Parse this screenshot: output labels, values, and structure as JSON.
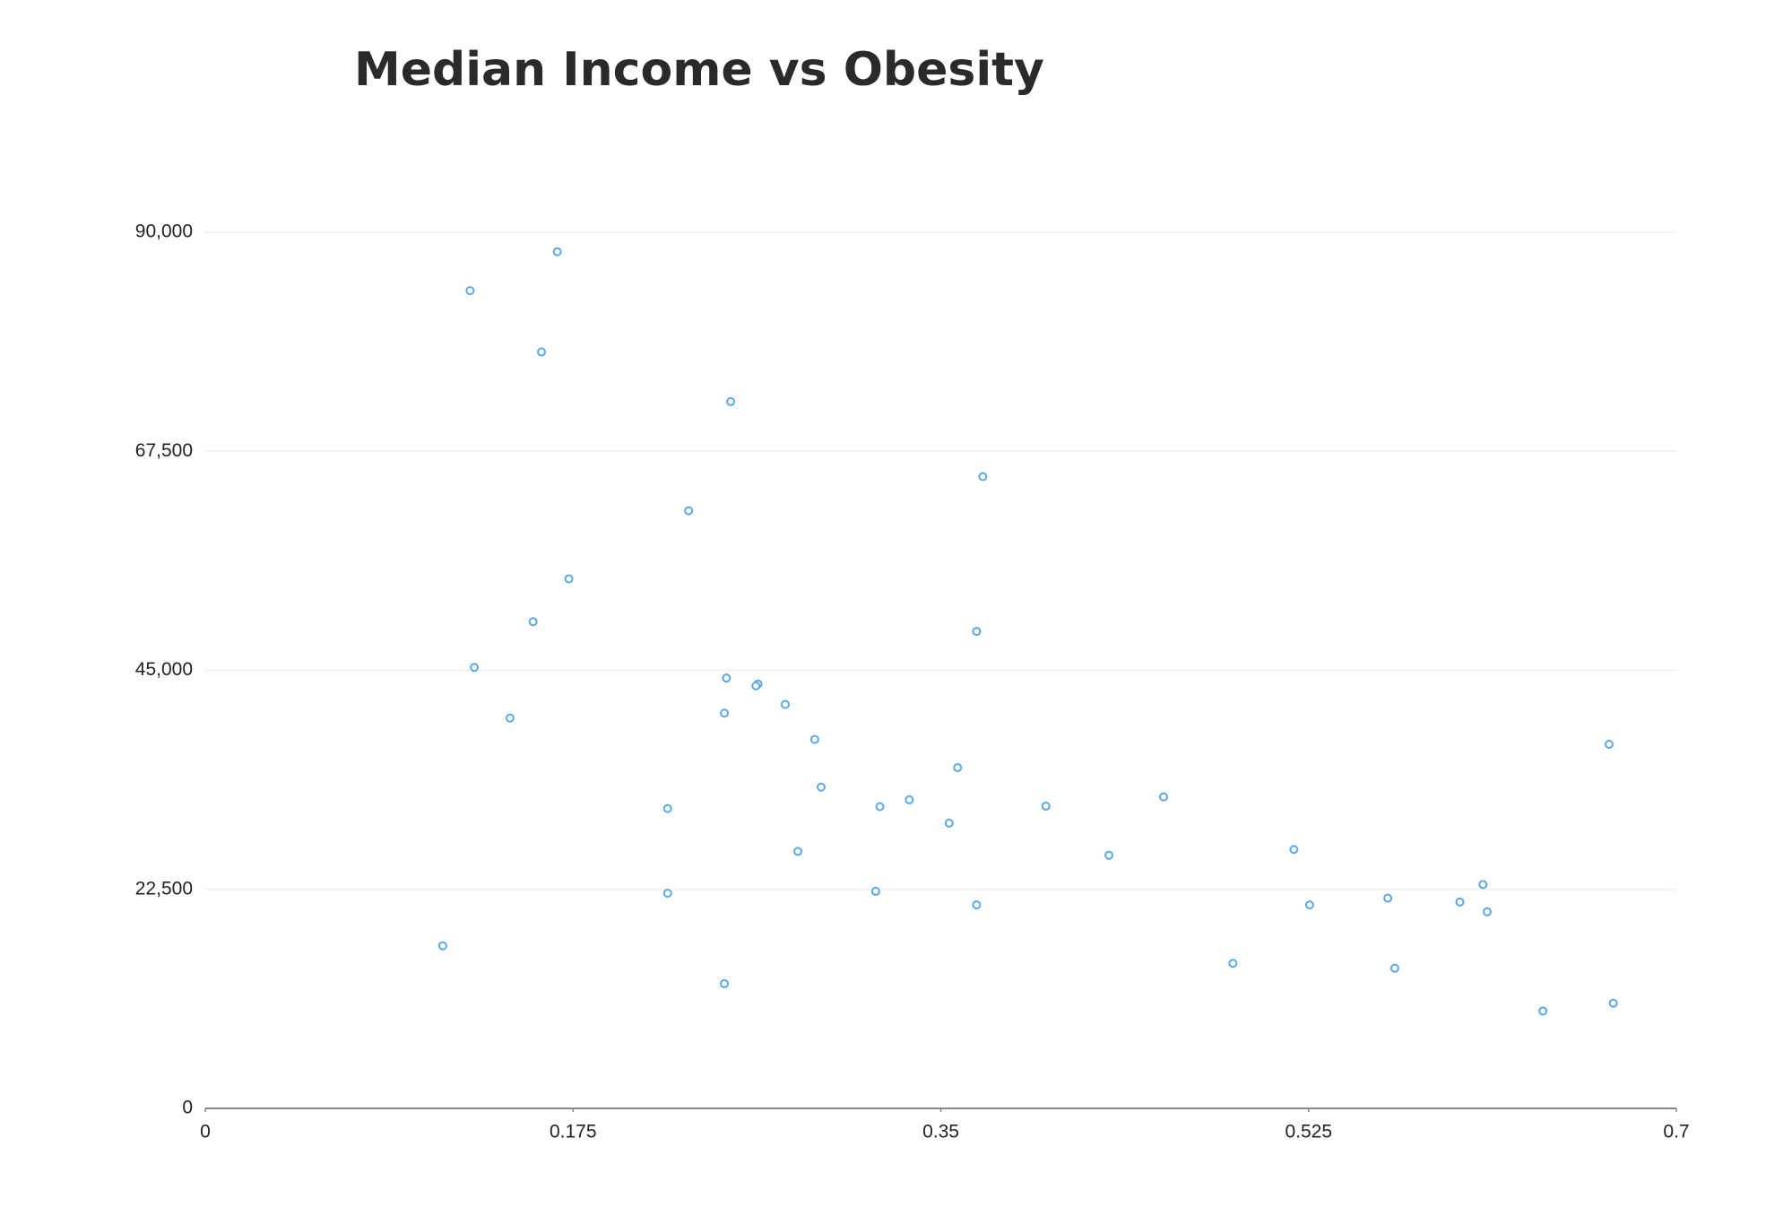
{
  "chart_data": {
    "type": "scatter",
    "title": "Median Income vs Obesity",
    "color": "#5aa9e6",
    "xlim": [
      0,
      0.7
    ],
    "xticks": [
      0,
      0.175,
      0.35,
      0.525,
      0.7
    ],
    "ylim": [
      0,
      90000
    ],
    "yticks": [
      0,
      {
        "value": 22500,
        "label": "22,500"
      },
      {
        "value": 45000,
        "label": "45,000"
      },
      {
        "value": 67500,
        "label": "67,500"
      },
      {
        "value": 90000,
        "label": "90,000"
      }
    ],
    "grid": true,
    "x": [
      0.126,
      0.1675,
      0.16,
      0.25,
      0.37,
      0.23,
      0.173,
      0.156,
      0.367,
      0.128,
      0.248,
      0.263,
      0.262,
      0.145,
      0.247,
      0.276,
      0.29,
      0.668,
      0.358,
      0.293,
      0.22,
      0.321,
      0.335,
      0.4,
      0.456,
      0.354,
      0.282,
      0.43,
      0.518,
      0.22,
      0.319,
      0.367,
      0.5255,
      0.5627,
      0.597,
      0.608,
      0.61,
      0.113,
      0.489,
      0.566,
      0.247,
      0.6365,
      0.67
    ],
    "values": [
      84000,
      88000,
      77700,
      72600,
      64900,
      61400,
      54400,
      50000,
      49000,
      45300,
      44200,
      43600,
      43400,
      40100,
      40600,
      41500,
      37900,
      37400,
      35000,
      33000,
      30800,
      31000,
      31700,
      31050,
      32000,
      29300,
      26400,
      26000,
      26600,
      22100,
      22300,
      20900,
      20900,
      21600,
      21200,
      23000,
      20200,
      16700,
      14900,
      14400,
      12800,
      10000,
      10800
    ]
  }
}
